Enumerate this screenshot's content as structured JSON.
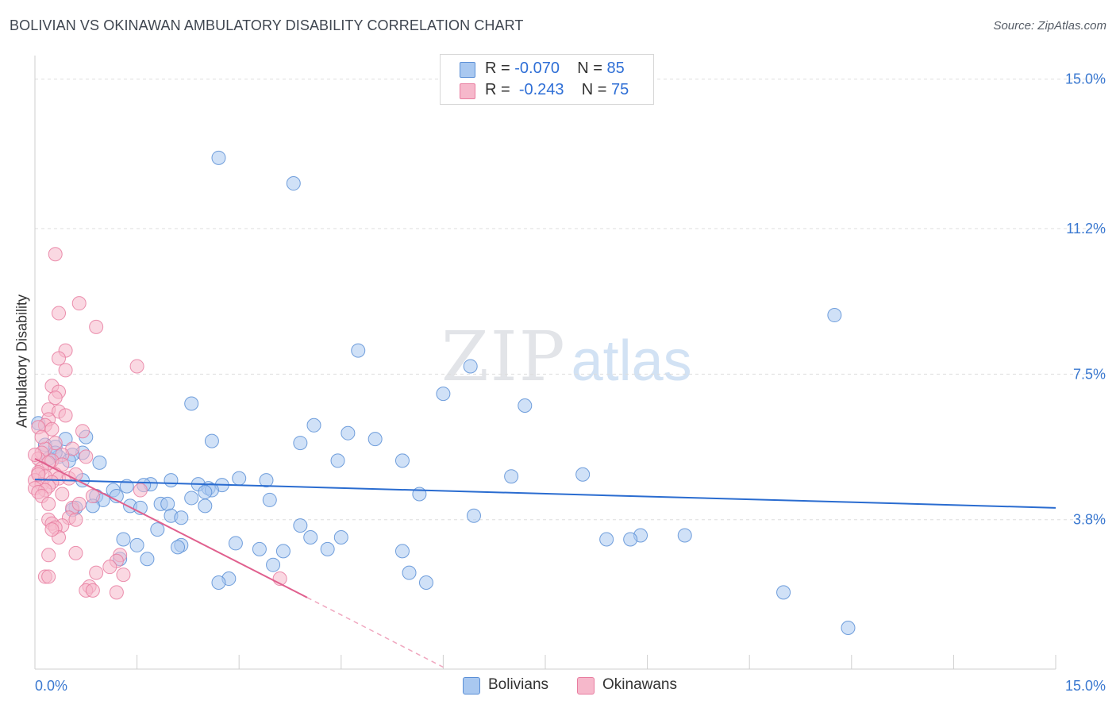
{
  "title": "BOLIVIAN VS OKINAWAN AMBULATORY DISABILITY CORRELATION CHART",
  "source": "Source: ZipAtlas.com",
  "watermark": {
    "zip": "ZIP",
    "atlas": "atlas"
  },
  "legend": {
    "series1": {
      "r_label": "R =",
      "r_value": "-0.070",
      "n_label": "N =",
      "n_value": "85"
    },
    "series2": {
      "r_label": "R =",
      "r_value": "-0.243",
      "n_label": "N =",
      "n_value": "75"
    }
  },
  "colors": {
    "blue_fill": "#a9c8f0",
    "blue_stroke": "#5b8fd6",
    "blue_line": "#2a6cd0",
    "pink_fill": "#f6b8cb",
    "pink_stroke": "#e87da0",
    "pink_line": "#e0608e",
    "tick_label": "#3a78d0",
    "grid": "#dddddd"
  },
  "chart_data": {
    "type": "scatter",
    "title": "BOLIVIAN VS OKINAWAN AMBULATORY DISABILITY CORRELATION CHART",
    "xlabel": "",
    "ylabel": "Ambulatory Disability",
    "xlim": [
      0,
      15
    ],
    "ylim": [
      0,
      15.6
    ],
    "x_tick_labels": [
      {
        "value": 0,
        "label": "0.0%"
      },
      {
        "value": 15,
        "label": "15.0%"
      }
    ],
    "y_ticks": [
      {
        "value": 3.8,
        "label": "3.8%"
      },
      {
        "value": 7.5,
        "label": "7.5%"
      },
      {
        "value": 11.2,
        "label": "11.2%"
      },
      {
        "value": 15.0,
        "label": "15.0%"
      }
    ],
    "x_minor_ticks": [
      1.5,
      3.0,
      4.5,
      6.0,
      7.5,
      9.0,
      10.5,
      12.0,
      13.5,
      15.0
    ],
    "series": [
      {
        "name": "Bolivians",
        "color": "#a9c8f0",
        "trend": {
          "x": [
            0.0,
            15.0
          ],
          "y": [
            4.82,
            4.1
          ]
        },
        "points": [
          [
            2.7,
            13.0
          ],
          [
            3.8,
            12.35
          ],
          [
            11.75,
            9.0
          ],
          [
            4.75,
            8.1
          ],
          [
            6.4,
            7.7
          ],
          [
            6.0,
            7.0
          ],
          [
            7.2,
            6.7
          ],
          [
            2.3,
            6.75
          ],
          [
            4.1,
            6.2
          ],
          [
            4.6,
            6.0
          ],
          [
            3.9,
            5.75
          ],
          [
            5.0,
            5.85
          ],
          [
            2.6,
            5.8
          ],
          [
            0.75,
            5.9
          ],
          [
            0.45,
            5.85
          ],
          [
            0.15,
            5.7
          ],
          [
            0.3,
            5.65
          ],
          [
            0.7,
            5.5
          ],
          [
            0.55,
            5.45
          ],
          [
            0.35,
            5.4
          ],
          [
            0.2,
            5.35
          ],
          [
            0.5,
            5.3
          ],
          [
            0.95,
            5.25
          ],
          [
            4.45,
            5.3
          ],
          [
            5.4,
            5.3
          ],
          [
            8.05,
            4.95
          ],
          [
            7.0,
            4.9
          ],
          [
            0.7,
            4.8
          ],
          [
            2.0,
            4.8
          ],
          [
            3.0,
            4.85
          ],
          [
            3.4,
            4.8
          ],
          [
            1.7,
            4.7
          ],
          [
            1.6,
            4.68
          ],
          [
            1.35,
            4.65
          ],
          [
            2.4,
            4.7
          ],
          [
            2.75,
            4.68
          ],
          [
            2.55,
            4.6
          ],
          [
            2.6,
            4.55
          ],
          [
            2.5,
            4.5
          ],
          [
            1.15,
            4.55
          ],
          [
            0.9,
            4.4
          ],
          [
            1.2,
            4.4
          ],
          [
            1.0,
            4.3
          ],
          [
            2.3,
            4.35
          ],
          [
            1.4,
            4.15
          ],
          [
            1.55,
            4.1
          ],
          [
            1.85,
            4.2
          ],
          [
            1.95,
            4.2
          ],
          [
            2.5,
            4.15
          ],
          [
            0.85,
            4.15
          ],
          [
            0.6,
            4.1
          ],
          [
            0.55,
            4.05
          ],
          [
            5.65,
            4.45
          ],
          [
            3.45,
            4.3
          ],
          [
            2.0,
            3.9
          ],
          [
            2.15,
            3.85
          ],
          [
            6.45,
            3.9
          ],
          [
            3.9,
            3.65
          ],
          [
            1.8,
            3.55
          ],
          [
            8.9,
            3.4
          ],
          [
            8.75,
            3.3
          ],
          [
            4.05,
            3.35
          ],
          [
            4.5,
            3.35
          ],
          [
            9.55,
            3.4
          ],
          [
            8.4,
            3.3
          ],
          [
            1.3,
            3.3
          ],
          [
            1.5,
            3.15
          ],
          [
            2.15,
            3.15
          ],
          [
            2.1,
            3.1
          ],
          [
            2.95,
            3.2
          ],
          [
            3.3,
            3.05
          ],
          [
            3.65,
            3.0
          ],
          [
            4.3,
            3.05
          ],
          [
            5.4,
            3.0
          ],
          [
            1.65,
            2.8
          ],
          [
            1.25,
            2.8
          ],
          [
            3.5,
            2.65
          ],
          [
            5.5,
            2.45
          ],
          [
            2.85,
            2.3
          ],
          [
            2.7,
            2.2
          ],
          [
            5.75,
            2.2
          ],
          [
            11.0,
            1.95
          ],
          [
            11.95,
            1.05
          ],
          [
            0.05,
            6.25
          ],
          [
            0.3,
            5.5
          ]
        ]
      },
      {
        "name": "Okinawans",
        "color": "#f6b8cb",
        "trend": {
          "x": [
            0.0,
            4.0
          ],
          "y": [
            5.35,
            1.82
          ]
        },
        "trend_dashed": {
          "x": [
            4.0,
            6.0
          ],
          "y": [
            1.82,
            0.05
          ]
        },
        "points": [
          [
            0.3,
            10.55
          ],
          [
            0.65,
            9.3
          ],
          [
            0.35,
            9.05
          ],
          [
            0.9,
            8.7
          ],
          [
            0.45,
            8.1
          ],
          [
            0.35,
            7.9
          ],
          [
            0.45,
            7.6
          ],
          [
            1.5,
            7.7
          ],
          [
            0.25,
            7.2
          ],
          [
            0.35,
            7.05
          ],
          [
            0.3,
            6.9
          ],
          [
            0.2,
            6.6
          ],
          [
            0.35,
            6.55
          ],
          [
            0.45,
            6.45
          ],
          [
            0.2,
            6.35
          ],
          [
            0.15,
            6.2
          ],
          [
            0.05,
            6.15
          ],
          [
            0.7,
            6.05
          ],
          [
            0.3,
            5.75
          ],
          [
            0.55,
            5.6
          ],
          [
            0.15,
            5.6
          ],
          [
            0.4,
            5.45
          ],
          [
            0.1,
            5.5
          ],
          [
            0.75,
            5.4
          ],
          [
            0.05,
            5.35
          ],
          [
            0.25,
            5.3
          ],
          [
            0.2,
            5.25
          ],
          [
            0.4,
            5.2
          ],
          [
            0.1,
            5.1
          ],
          [
            0.3,
            4.95
          ],
          [
            0.05,
            5.0
          ],
          [
            0.15,
            4.9
          ],
          [
            0.35,
            4.85
          ],
          [
            0.5,
            4.85
          ],
          [
            0.0,
            4.8
          ],
          [
            0.25,
            4.75
          ],
          [
            0.1,
            4.7
          ],
          [
            0.2,
            4.65
          ],
          [
            0.0,
            4.6
          ],
          [
            0.15,
            4.55
          ],
          [
            0.05,
            4.5
          ],
          [
            0.4,
            4.45
          ],
          [
            0.1,
            4.4
          ],
          [
            1.55,
            4.55
          ],
          [
            0.85,
            4.4
          ],
          [
            0.2,
            4.2
          ],
          [
            0.55,
            4.1
          ],
          [
            0.65,
            4.2
          ],
          [
            0.5,
            3.85
          ],
          [
            0.2,
            3.8
          ],
          [
            0.25,
            3.7
          ],
          [
            0.4,
            3.65
          ],
          [
            0.3,
            3.6
          ],
          [
            0.6,
            3.8
          ],
          [
            0.35,
            3.35
          ],
          [
            0.25,
            3.55
          ],
          [
            0.2,
            2.9
          ],
          [
            0.6,
            2.95
          ],
          [
            1.25,
            2.9
          ],
          [
            1.2,
            2.75
          ],
          [
            1.1,
            2.6
          ],
          [
            0.9,
            2.45
          ],
          [
            1.3,
            2.4
          ],
          [
            0.15,
            2.35
          ],
          [
            0.2,
            2.35
          ],
          [
            0.8,
            2.1
          ],
          [
            0.75,
            2.0
          ],
          [
            0.85,
            2.0
          ],
          [
            1.2,
            1.95
          ],
          [
            3.6,
            2.3
          ],
          [
            0.05,
            4.95
          ],
          [
            0.0,
            5.45
          ],
          [
            0.1,
            5.9
          ],
          [
            0.25,
            6.1
          ],
          [
            0.6,
            4.95
          ]
        ]
      }
    ]
  },
  "bottom_legend": [
    "Bolivians",
    "Okinawans"
  ]
}
